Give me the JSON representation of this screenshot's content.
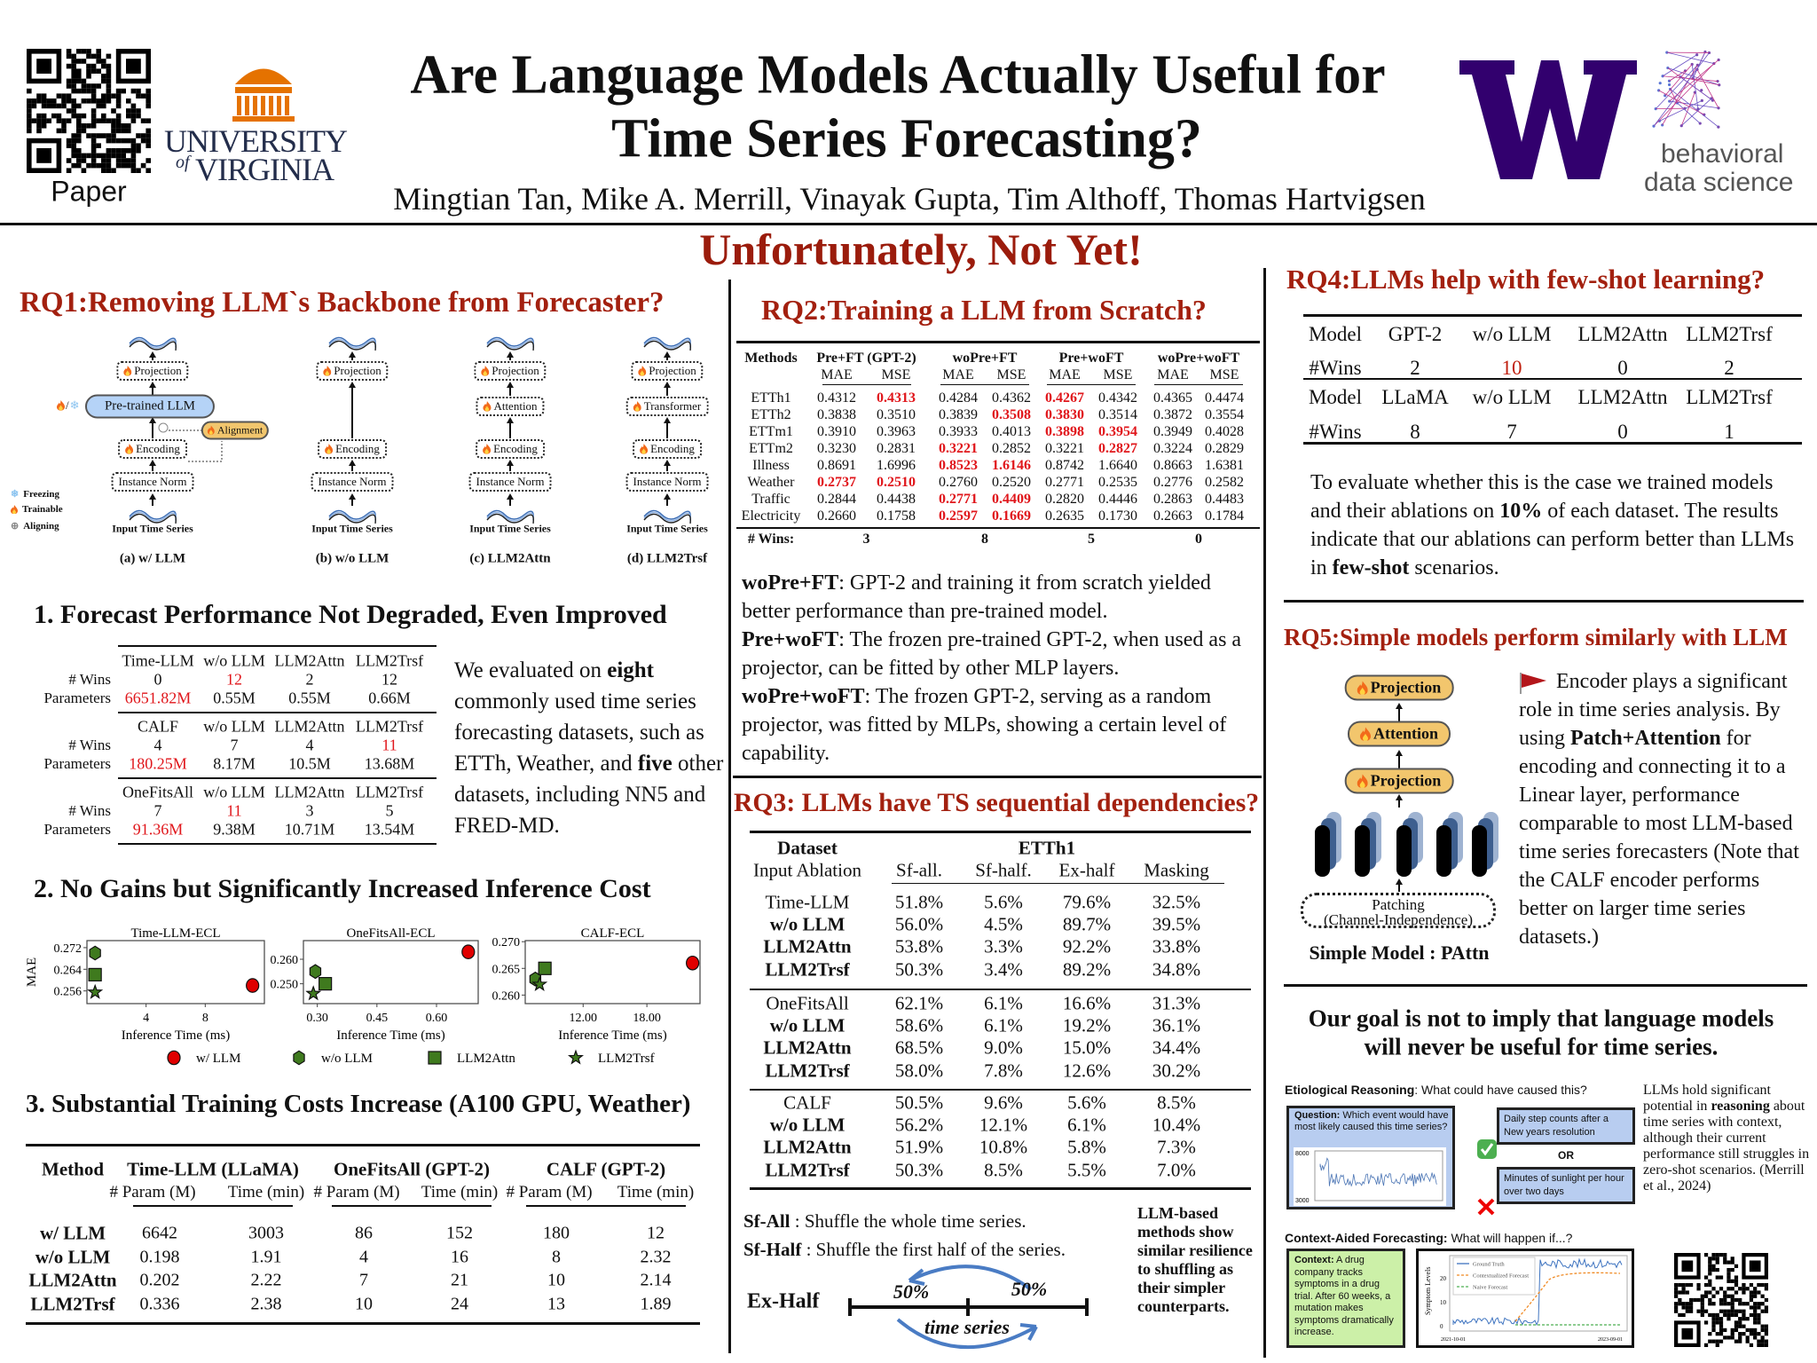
{
  "header": {
    "title_line1": "Are Language Models Actually Useful for",
    "title_line2": "Time Series Forecasting?",
    "authors": "Mingtian Tan, Mike A. Merrill, Vinayak Gupta, Tim Althoff, Thomas Hartvigsen",
    "qr_label": "Paper",
    "uva_logo": {
      "line1": "UNIVERSITY",
      "of": "of",
      "line2": "VIRGINIA",
      "color": "#e57200",
      "text_color": "#232d4b"
    },
    "uw_logo": {
      "letter": "W",
      "color": "#32006e"
    },
    "bds_logo": {
      "line1": "behavioral",
      "line2": "data science"
    }
  },
  "banner": "Unfortunately, Not Yet!",
  "colors": {
    "heading_red": "#a3200f",
    "highlight_red": "#e0161b",
    "marker_red": "#e00000",
    "marker_green": "#3f7a1e",
    "pill_orange": "#f2c66d",
    "box_blue": "#b8cdf0",
    "box_green": "#ccf0a8"
  },
  "rq1": {
    "title": "RQ1:Removing LLM`s Backbone from Forecaster?",
    "legend": [
      {
        "icon": "snowflake-icon",
        "label": "Freezing"
      },
      {
        "icon": "flame-icon",
        "label": "Trainable"
      },
      {
        "icon": "aligning-plus-icon",
        "label": "Aligning"
      }
    ],
    "panels": [
      {
        "caption": "(a) w/ LLM",
        "blocks": [
          "Projection",
          "Pre-trained LLM",
          "Encoding",
          "Instance Norm"
        ],
        "side_block": "Alignment",
        "input_label": "Input Time Series"
      },
      {
        "caption": "(b) w/o LLM",
        "blocks": [
          "Projection",
          "Encoding",
          "Instance Norm"
        ],
        "input_label": "Input Time Series"
      },
      {
        "caption": "(c) LLM2Attn",
        "blocks": [
          "Projection",
          "Attention",
          "Encoding",
          "Instance Norm"
        ],
        "input_label": "Input Time Series"
      },
      {
        "caption": "(d) LLM2Trsf",
        "blocks": [
          "Projection",
          "Transformer",
          "Encoding",
          "Instance Norm"
        ],
        "input_label": "Input Time Series"
      }
    ]
  },
  "sec1": {
    "title": "1. Forecast Performance Not Degraded, Even Improved",
    "row_labels": [
      "# Wins",
      "Parameters"
    ],
    "groups": [
      {
        "models": [
          "Time-LLM",
          "w/o LLM",
          "LLM2Attn",
          "LLM2Trsf"
        ],
        "wins": [
          "0",
          "12",
          "2",
          "12"
        ],
        "params": [
          "6651.82M",
          "0.55M",
          "0.55M",
          "0.66M"
        ],
        "red_wins": [
          1
        ],
        "red_params": [
          0
        ]
      },
      {
        "models": [
          "CALF",
          "w/o LLM",
          "LLM2Attn",
          "LLM2Trsf"
        ],
        "wins": [
          "4",
          "7",
          "4",
          "11"
        ],
        "params": [
          "180.25M",
          "8.17M",
          "10.5M",
          "13.68M"
        ],
        "red_wins": [
          3
        ],
        "red_params": [
          0
        ]
      },
      {
        "models": [
          "OneFitsAll",
          "w/o LLM",
          "LLM2Attn",
          "LLM2Trsf"
        ],
        "wins": [
          "7",
          "11",
          "3",
          "5"
        ],
        "params": [
          "91.36M",
          "9.38M",
          "10.71M",
          "13.54M"
        ],
        "red_wins": [
          1
        ],
        "red_params": [
          0
        ]
      }
    ],
    "text": [
      {
        "t": "We evaluated on "
      },
      {
        "t": "eight",
        "b": true
      },
      {
        "t": " commonly used time series forecasting datasets, such as ETTh, Weather, and "
      },
      {
        "t": "five",
        "b": true
      },
      {
        "t": " other datasets, including NN5 and FRED-MD."
      }
    ]
  },
  "sec2": {
    "title": "2. No Gains but Significantly Increased Inference Cost",
    "legend": [
      {
        "marker": "circle",
        "label": "w/ LLM"
      },
      {
        "marker": "hexagon",
        "label": "w/o LLM"
      },
      {
        "marker": "square",
        "label": "LLM2Attn"
      },
      {
        "marker": "star",
        "label": "LLM2Trsf"
      }
    ]
  },
  "chart_data": [
    {
      "type": "scatter",
      "title": "Time-LLM-ECL",
      "xlabel": "Inference Time (ms)",
      "ylabel": "MAE",
      "xlim": [
        0,
        12
      ],
      "ylim": [
        0.2513,
        0.2746
      ],
      "xticks": [
        4,
        8
      ],
      "xtick_labels": [
        "4",
        "8"
      ],
      "yticks": [
        0.256,
        0.264,
        0.272
      ],
      "ytick_labels": [
        "0.256",
        "0.264",
        "0.272"
      ],
      "points": [
        {
          "series": "w/ LLM",
          "x": 11.2,
          "y": 0.258
        },
        {
          "series": "w/o LLM",
          "x": 0.55,
          "y": 0.27
        },
        {
          "series": "LLM2Attn",
          "x": 0.55,
          "y": 0.262
        },
        {
          "series": "LLM2Trsf",
          "x": 0.55,
          "y": 0.2555
        }
      ]
    },
    {
      "type": "scatter",
      "title": "OneFitsAll-ECL",
      "xlabel": "Inference Time (ms)",
      "ylabel": "",
      "xlim": [
        0.265,
        0.705
      ],
      "ylim": [
        0.2419,
        0.2676
      ],
      "xticks": [
        0.3,
        0.45,
        0.6
      ],
      "xtick_labels": [
        "0.30",
        "0.45",
        "0.60"
      ],
      "yticks": [
        0.25,
        0.26
      ],
      "ytick_labels": [
        "0.250",
        "0.260"
      ],
      "points": [
        {
          "series": "w/ LLM",
          "x": 0.68,
          "y": 0.263
        },
        {
          "series": "w/o LLM",
          "x": 0.295,
          "y": 0.255
        },
        {
          "series": "LLM2Attn",
          "x": 0.32,
          "y": 0.25
        },
        {
          "series": "LLM2Trsf",
          "x": 0.29,
          "y": 0.246
        }
      ]
    },
    {
      "type": "scatter",
      "title": "CALF-ECL",
      "xlabel": "Inference Time (ms)",
      "ylabel": "",
      "xlim": [
        6.55,
        23.0
      ],
      "ylim": [
        0.2584,
        0.2702
      ],
      "xticks": [
        12,
        18
      ],
      "xtick_labels": [
        "12.00",
        "18.00"
      ],
      "yticks": [
        0.26,
        0.265,
        0.27
      ],
      "ytick_labels": [
        "0.260",
        "0.265",
        "0.270"
      ],
      "points": [
        {
          "series": "w/ LLM",
          "x": 22.3,
          "y": 0.266
        },
        {
          "series": "w/o LLM",
          "x": 7.5,
          "y": 0.263
        },
        {
          "series": "LLM2Attn",
          "x": 8.4,
          "y": 0.265
        },
        {
          "series": "LLM2Trsf",
          "x": 7.9,
          "y": 0.262
        }
      ]
    }
  ],
  "sec3": {
    "title": "3. Substantial Training Costs Increase (A100 GPU, Weather)",
    "method_header": "Method",
    "groups": [
      "Time-LLM (LLaMA)",
      "OneFitsAll (GPT-2)",
      "CALF (GPT-2)"
    ],
    "subheaders": [
      "# Param (M)",
      "Time (min)",
      "# Param (M)",
      "Time (min)",
      "# Param (M)",
      "Time (min)"
    ],
    "rows": [
      {
        "name": "w/ LLM",
        "values": [
          "6642",
          "3003",
          "86",
          "152",
          "180",
          "12"
        ]
      },
      {
        "name": "w/o LLM",
        "values": [
          "0.198",
          "1.91",
          "4",
          "16",
          "8",
          "2.32"
        ]
      },
      {
        "name": "LLM2Attn",
        "values": [
          "0.202",
          "2.22",
          "7",
          "21",
          "10",
          "2.14"
        ]
      },
      {
        "name": "LLM2Trsf",
        "values": [
          "0.336",
          "2.38",
          "10",
          "24",
          "13",
          "1.89"
        ]
      }
    ]
  },
  "rq2": {
    "title": "RQ2:Training a LLM from Scratch?",
    "methods_header": "Methods",
    "groups": [
      "Pre+FT (GPT-2)",
      "woPre+FT",
      "Pre+woFT",
      "woPre+woFT"
    ],
    "metrics": [
      "MAE",
      "MSE",
      "MAE",
      "MSE",
      "MAE",
      "MSE",
      "MAE",
      "MSE"
    ],
    "rows": [
      {
        "name": "ETTh1",
        "values": [
          "0.4312",
          "0.4313",
          "0.4284",
          "0.4362",
          "0.4267",
          "0.4342",
          "0.4365",
          "0.4474"
        ],
        "best": [
          1,
          4
        ]
      },
      {
        "name": "ETTh2",
        "values": [
          "0.3838",
          "0.3510",
          "0.3839",
          "0.3508",
          "0.3830",
          "0.3514",
          "0.3872",
          "0.3554"
        ],
        "best": [
          3,
          4
        ]
      },
      {
        "name": "ETTm1",
        "values": [
          "0.3910",
          "0.3963",
          "0.3933",
          "0.4013",
          "0.3898",
          "0.3954",
          "0.3949",
          "0.4028"
        ],
        "best": [
          4,
          5
        ]
      },
      {
        "name": "ETTm2",
        "values": [
          "0.3230",
          "0.2831",
          "0.3221",
          "0.2852",
          "0.3221",
          "0.2827",
          "0.3224",
          "0.2829"
        ],
        "best": [
          2,
          5
        ]
      },
      {
        "name": "Illness",
        "values": [
          "0.8691",
          "1.6996",
          "0.8523",
          "1.6146",
          "0.8742",
          "1.6640",
          "0.8663",
          "1.6381"
        ],
        "best": [
          2,
          3
        ]
      },
      {
        "name": "Weather",
        "values": [
          "0.2737",
          "0.2510",
          "0.2760",
          "0.2520",
          "0.2771",
          "0.2535",
          "0.2776",
          "0.2582"
        ],
        "best": [
          0,
          1
        ]
      },
      {
        "name": "Traffic",
        "values": [
          "0.2844",
          "0.4438",
          "0.2771",
          "0.4409",
          "0.2820",
          "0.4446",
          "0.2863",
          "0.4483"
        ],
        "best": [
          2,
          3
        ]
      },
      {
        "name": "Electricity",
        "values": [
          "0.2660",
          "0.1758",
          "0.2597",
          "0.1669",
          "0.2635",
          "0.1730",
          "0.2663",
          "0.1784"
        ],
        "best": [
          2,
          3
        ]
      }
    ],
    "wins_label": "# Wins:",
    "wins": [
      "3",
      "8",
      "5",
      "0"
    ],
    "notes": [
      [
        {
          "t": "woPre+FT",
          "b": true
        },
        {
          "t": ": GPT-2 and training it from scratch yielded better performance than pre-trained model."
        }
      ],
      [
        {
          "t": "Pre+woFT",
          "b": true
        },
        {
          "t": ": The frozen pre-trained GPT-2, when used as a projector, can be fitted by other MLP layers."
        }
      ],
      [
        {
          "t": "woPre+woFT",
          "b": true
        },
        {
          "t": ": The frozen GPT-2, serving as a random projector, was fitted by MLPs, showing a certain level of capability."
        }
      ]
    ]
  },
  "rq3": {
    "title": "RQ3: LLMs have TS sequential dependencies?",
    "dataset_header": "Dataset",
    "dataset_name": "ETTh1",
    "ablation_header": "Input Ablation",
    "columns": [
      "Sf-all.",
      "Sf-half.",
      "Ex-half",
      "Masking"
    ],
    "groups": [
      [
        {
          "name": "Time-LLM",
          "bold": false,
          "values": [
            "51.8%",
            "5.6%",
            "79.6%",
            "32.5%"
          ]
        },
        {
          "name": "w/o LLM",
          "bold": true,
          "values": [
            "56.0%",
            "4.5%",
            "89.7%",
            "39.5%"
          ]
        },
        {
          "name": "LLM2Attn",
          "bold": true,
          "values": [
            "53.8%",
            "3.3%",
            "92.2%",
            "33.8%"
          ]
        },
        {
          "name": "LLM2Trsf",
          "bold": true,
          "values": [
            "50.3%",
            "3.4%",
            "89.2%",
            "34.8%"
          ]
        }
      ],
      [
        {
          "name": "OneFitsAll",
          "bold": false,
          "values": [
            "62.1%",
            "6.1%",
            "16.6%",
            "31.3%"
          ]
        },
        {
          "name": "w/o LLM",
          "bold": true,
          "values": [
            "58.6%",
            "6.1%",
            "19.2%",
            "36.1%"
          ]
        },
        {
          "name": "LLM2Attn",
          "bold": true,
          "values": [
            "68.5%",
            "9.0%",
            "15.0%",
            "34.4%"
          ]
        },
        {
          "name": "LLM2Trsf",
          "bold": true,
          "values": [
            "58.0%",
            "7.8%",
            "12.6%",
            "30.2%"
          ]
        }
      ],
      [
        {
          "name": "CALF",
          "bold": false,
          "values": [
            "50.5%",
            "9.6%",
            "5.6%",
            "8.5%"
          ]
        },
        {
          "name": "w/o LLM",
          "bold": true,
          "values": [
            "56.2%",
            "12.1%",
            "6.1%",
            "10.4%"
          ]
        },
        {
          "name": "LLM2Attn",
          "bold": true,
          "values": [
            "51.9%",
            "10.8%",
            "5.8%",
            "7.3%"
          ]
        },
        {
          "name": "LLM2Trsf",
          "bold": true,
          "values": [
            "50.3%",
            "8.5%",
            "5.5%",
            "7.0%"
          ]
        }
      ]
    ],
    "defs": [
      [
        {
          "t": "Sf-All",
          "b": true
        },
        {
          "t": " : Shuffle the whole time series."
        }
      ],
      [
        {
          "t": "Sf-Half",
          "b": true
        },
        {
          "t": " : Shuffle the first half of the series."
        }
      ]
    ],
    "exhalf_label": "Ex-Half",
    "half_left": "50%",
    "half_right": "50%",
    "timeline_label": "time series",
    "side_note": "LLM-based methods show similar resilience to shuffling as their simpler counterparts."
  },
  "rq4": {
    "title": "RQ4:LLMs help with few-shot learning?",
    "rows": [
      {
        "cells": [
          "Model",
          "GPT-2",
          "w/o LLM",
          "LLM2Attn",
          "LLM2Trsf"
        ]
      },
      {
        "cells": [
          "#Wins",
          "2",
          "10",
          "0",
          "2"
        ],
        "red": [
          2
        ]
      },
      {
        "cells": [
          "Model",
          "LLaMA",
          "w/o LLM",
          "LLM2Attn",
          "LLM2Trsf"
        ]
      },
      {
        "cells": [
          "#Wins",
          "8",
          "7",
          "0",
          "1"
        ]
      }
    ],
    "text": [
      {
        "t": "To evaluate whether this is the case we trained models and their ablations on "
      },
      {
        "t": "10%",
        "b": true
      },
      {
        "t": " of each dataset. The results indicate that our ablations can perform better than LLMs in "
      },
      {
        "t": "few-shot",
        "b": true
      },
      {
        "t": " scenarios."
      }
    ]
  },
  "rq5": {
    "title": "RQ5:Simple models perform similarly with LLM",
    "blocks": [
      "Projection",
      "Attention",
      "Projection"
    ],
    "patching": "Patching",
    "patching_sub": "(Channel-Independence)",
    "caption": "Simple Model : PAttn",
    "text": [
      {
        "t": "Encoder plays a significant role in time series analysis. By using "
      },
      {
        "t": "Patch+Attention",
        "b": true
      },
      {
        "t": " for encoding and connecting it to a Linear layer, performance comparable to most LLM-based time series forecasters (Note that the CALF encoder performs better on larger time series datasets.)"
      }
    ]
  },
  "goal": {
    "line1": "Our goal is not to imply that language models",
    "line2": "will never be useful for time series."
  },
  "reasoning": {
    "etiological_title": "Etiological Reasoning",
    "etiological_rest": ": What could have caused this?",
    "question_label": "Question:",
    "question_text": " Which event would have most likely caused this time series?",
    "chart_ymax": "8000",
    "chart_ymin": "3000",
    "option_correct": "Daily step counts after a New years resolution",
    "or_label": "OR",
    "option_wrong": "Minutes of sunlight per hour over two days",
    "side_text": [
      {
        "t": "LLMs hold significant potential in "
      },
      {
        "t": "reasoning",
        "b": true
      },
      {
        "t": " about time series with context, although their current performance still struggles in zero-shot scenarios. (Merrill et al., 2024)"
      }
    ],
    "context_title": "Context-Aided Forecasting:",
    "context_rest": " What will happen if...?",
    "context_label": "Context:",
    "context_text": " A drug company tracks symptoms in a drug trial. After 60 weeks, a mutation makes symptoms dramatically increase.",
    "forecast_chart": {
      "ylabel": "Symptom Levels",
      "yticks": [
        "0",
        "10",
        "20"
      ],
      "xstart": "2021-10-01",
      "xend": "2023-09-01",
      "legend": [
        "Ground Truth",
        "Contextualized Forecast",
        "Naive Forecast"
      ]
    }
  }
}
